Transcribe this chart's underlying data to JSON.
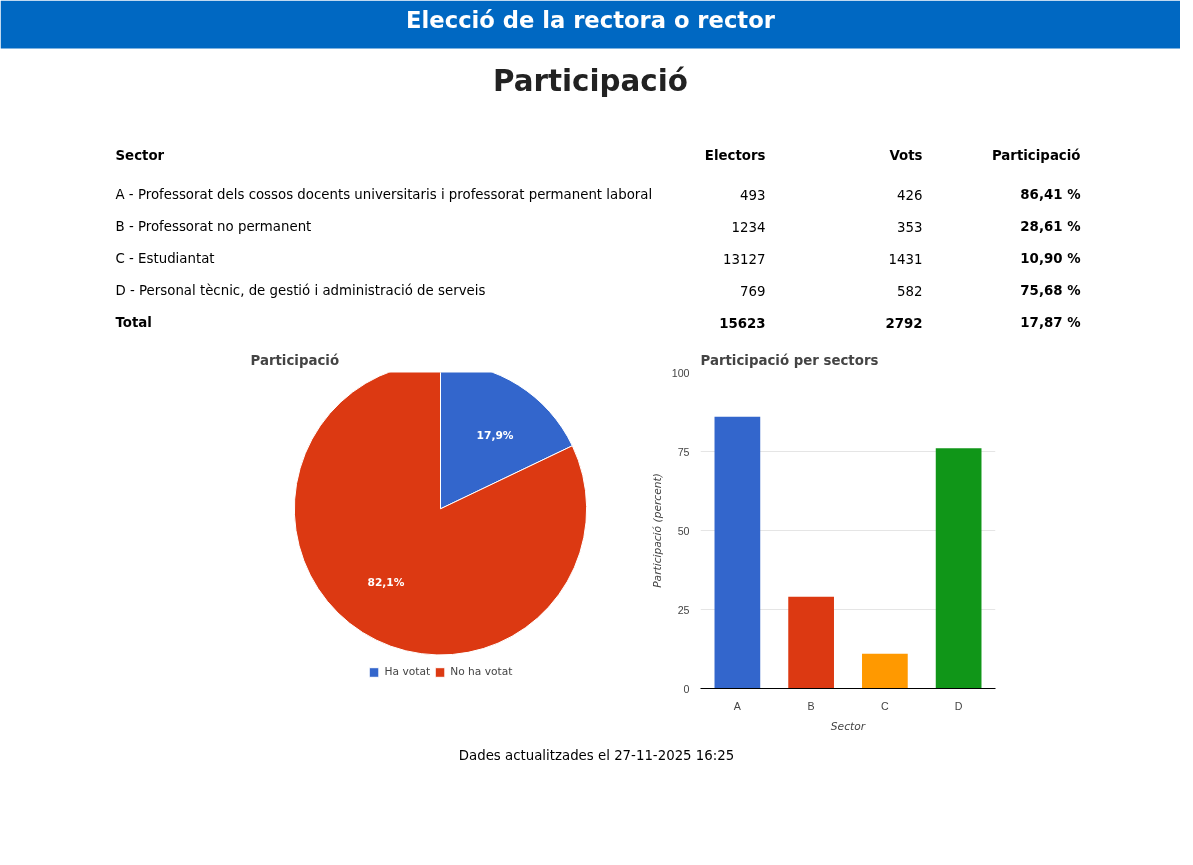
{
  "chart_data": [
    {
      "type": "other",
      "title": "Participació",
      "xlabel": "Sector",
      "annotations": [
        "Elecció de la rectora o rector",
        "Dades actualitzades el 27-11-2025 16:25"
      ],
      "categories": [
        "A - Professorat dels cossos docents universitaris i professorat permanent laboral",
        "B - Professorat no permanent",
        "C - Estudiantat",
        "D - Personal tècnic, de gestió i administració de serveis",
        "Total"
      ],
      "series": [
        {
          "name": "Electors",
          "values": [
            493,
            1234,
            13127,
            769,
            15623
          ]
        },
        {
          "name": "Vots",
          "values": [
            426,
            353,
            1431,
            582,
            2792
          ]
        },
        {
          "name": "Participació",
          "values": [
            86.41,
            28.61,
            10.9,
            75.68,
            17.87
          ],
          "value_labels": [
            "86,41 %",
            "28,61 %",
            "10,90 %",
            "75,68 %",
            "17,87 %"
          ]
        }
      ],
      "data_labels": true
    },
    {
      "type": "pie",
      "title": "Participació",
      "categories": [
        "Ha votat",
        "No ha votat"
      ],
      "values": [
        17.9,
        82.1
      ],
      "colors": [
        "#3366cc",
        "#dc3912"
      ],
      "value_labels": [
        "17,9%",
        "82,1%"
      ],
      "legend": "bottom"
    },
    {
      "type": "bar",
      "title": "Participació per sectors",
      "categories": [
        "A",
        "B",
        "C",
        "D"
      ],
      "values": [
        86,
        29,
        11,
        76
      ],
      "colors": [
        "#3366cc",
        "#dc3912",
        "#ff9900",
        "#109618"
      ],
      "ylim": [
        0,
        100
      ],
      "yticks": [
        0,
        25,
        50,
        75,
        100
      ],
      "grid": "y",
      "xlabel": "Sector",
      "ylabel": "Participació (percent)"
    }
  ]
}
